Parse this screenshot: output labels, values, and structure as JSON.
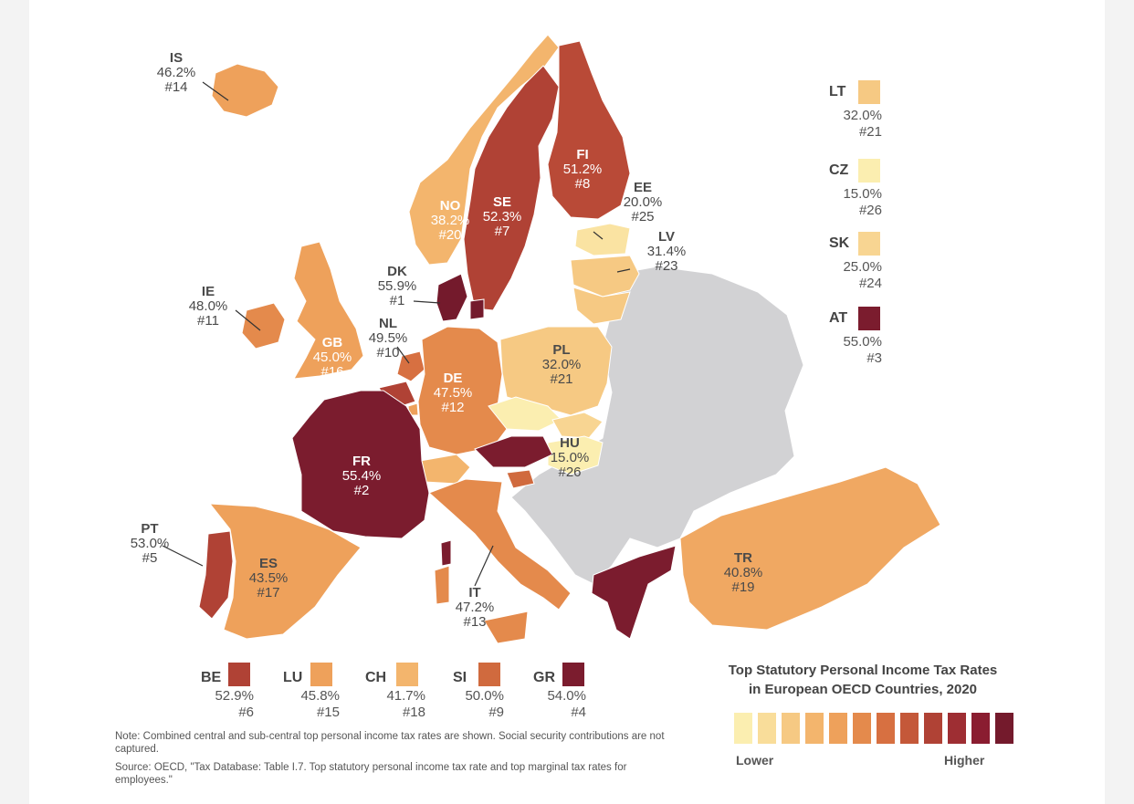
{
  "title_line1": "Top Statutory Personal Income Tax Rates",
  "title_line2": "in European OECD Countries, 2020",
  "scale": {
    "lower": "Lower",
    "higher": "Higher",
    "colors": [
      "#fbeeb0",
      "#f9dd9a",
      "#f6c983",
      "#f3b56d",
      "#eea15b",
      "#e48a4c",
      "#d77041",
      "#c45839",
      "#b04235",
      "#9e2e33",
      "#8a1d30",
      "#741a2c"
    ]
  },
  "note": "Note: Combined central and sub-central top personal income tax rates are shown. Social security contributions are not captured.",
  "source": "Source: OECD, \"Tax Database: Table I.7. Top statutory personal income tax rate and top marginal tax rates for employees.\"",
  "colors": {
    "non_oecd": "#d2d2d4",
    "border": "#ffffff"
  },
  "countries": {
    "IS": {
      "code": "IS",
      "rate": "46.2%",
      "rank": "#14",
      "color": "#eea15b"
    },
    "NO": {
      "code": "NO",
      "rate": "38.2%",
      "rank": "#20",
      "color": "#f3b56d"
    },
    "SE": {
      "code": "SE",
      "rate": "52.3%",
      "rank": "#7",
      "color": "#b04235"
    },
    "FI": {
      "code": "FI",
      "rate": "51.2%",
      "rank": "#8",
      "color": "#b94a37"
    },
    "EE": {
      "code": "EE",
      "rate": "20.0%",
      "rank": "#25",
      "color": "#fae3a2"
    },
    "LV": {
      "code": "LV",
      "rate": "31.4%",
      "rank": "#23",
      "color": "#f6c983"
    },
    "DK": {
      "code": "DK",
      "rate": "55.9%",
      "rank": "#1",
      "color": "#741a2c"
    },
    "IE": {
      "code": "IE",
      "rate": "48.0%",
      "rank": "#11",
      "color": "#e48a4c"
    },
    "GB": {
      "code": "GB",
      "rate": "45.0%",
      "rank": "#16",
      "color": "#eea15b"
    },
    "NL": {
      "code": "NL",
      "rate": "49.5%",
      "rank": "#10",
      "color": "#d77041"
    },
    "DE": {
      "code": "DE",
      "rate": "47.5%",
      "rank": "#12",
      "color": "#e48a4c"
    },
    "PL": {
      "code": "PL",
      "rate": "32.0%",
      "rank": "#21",
      "color": "#f6c983"
    },
    "HU": {
      "code": "HU",
      "rate": "15.0%",
      "rank": "#26",
      "color": "#fbeeb0"
    },
    "FR": {
      "code": "FR",
      "rate": "55.4%",
      "rank": "#2",
      "color": "#7b1c2e"
    },
    "PT": {
      "code": "PT",
      "rate": "53.0%",
      "rank": "#5",
      "color": "#b04235"
    },
    "ES": {
      "code": "ES",
      "rate": "43.5%",
      "rank": "#17",
      "color": "#eea15b"
    },
    "IT": {
      "code": "IT",
      "rate": "47.2%",
      "rank": "#13",
      "color": "#e48a4c"
    },
    "TR": {
      "code": "TR",
      "rate": "40.8%",
      "rank": "#19",
      "color": "#f0a862"
    },
    "LT": {
      "code": "LT",
      "rate": "32.0%",
      "rank": "#21",
      "color": "#f6c983"
    },
    "CZ": {
      "code": "CZ",
      "rate": "15.0%",
      "rank": "#26",
      "color": "#fbeeb0"
    },
    "SK": {
      "code": "SK",
      "rate": "25.0%",
      "rank": "#24",
      "color": "#f8d592"
    },
    "AT": {
      "code": "AT",
      "rate": "55.0%",
      "rank": "#3",
      "color": "#7b1c2e"
    },
    "BE": {
      "code": "BE",
      "rate": "52.9%",
      "rank": "#6",
      "color": "#b04235"
    },
    "LU": {
      "code": "LU",
      "rate": "45.8%",
      "rank": "#15",
      "color": "#eea15b"
    },
    "CH": {
      "code": "CH",
      "rate": "41.7%",
      "rank": "#18",
      "color": "#f3b56d"
    },
    "SI": {
      "code": "SI",
      "rate": "50.0%",
      "rank": "#9",
      "color": "#d06a3e"
    },
    "GR": {
      "code": "GR",
      "rate": "54.0%",
      "rank": "#4",
      "color": "#7b1c2e"
    }
  }
}
